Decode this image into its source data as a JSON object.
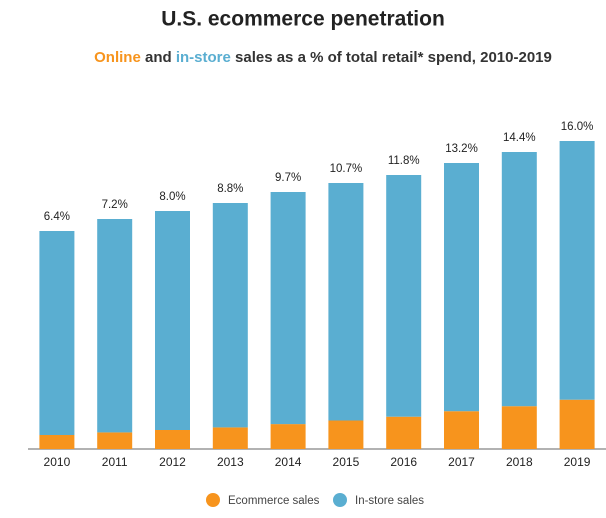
{
  "chart_data": {
    "type": "stacked_bar",
    "title": "U.S. ecommerce penetration",
    "subtitle": [
      "Online",
      "and",
      "in-store",
      "sales as a % of total retail* spend, 2010-2019"
    ],
    "categories": [
      "2010",
      "2011",
      "2012",
      "2013",
      "2014",
      "2015",
      "2016",
      "2017",
      "2018",
      "2019"
    ],
    "series": [
      {
        "name": "Ecommerce sales",
        "color": "#f7941d",
        "values": [
          14.0,
          16.6,
          19.0,
          21.6,
          24.9,
          28.5,
          32.3,
          37.8,
          42.8,
          49.3
        ]
      },
      {
        "name": "In-store sales",
        "color": "#5aaed1",
        "values": [
          204.0,
          213.4,
          219.0,
          224.4,
          232.1,
          237.5,
          241.7,
          248.2,
          254.2,
          258.7
        ]
      }
    ],
    "labels": [
      "6.4%",
      "7.2%",
      "8.0%",
      "8.8%",
      "9.7%",
      "10.7%",
      "11.8%",
      "13.2%",
      "14.4%",
      "16.0%"
    ],
    "ylim": [
      0,
      308
    ]
  }
}
